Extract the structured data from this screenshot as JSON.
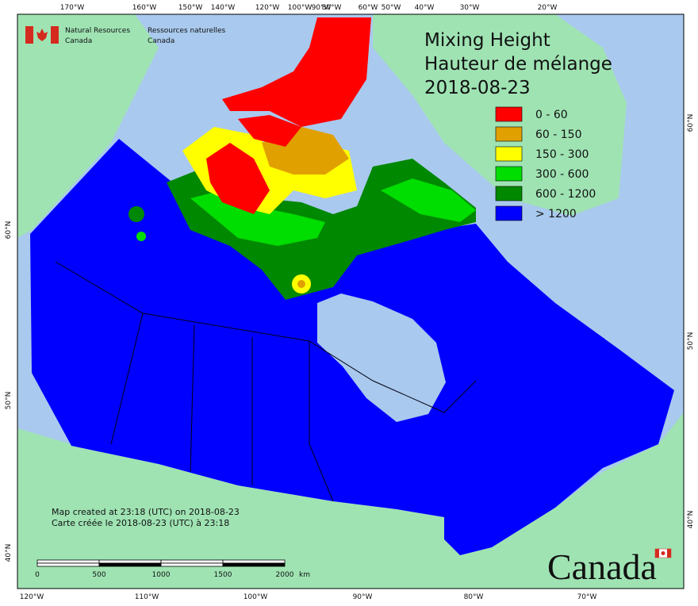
{
  "header": {
    "org_en": [
      "Natural Resources",
      "Canada"
    ],
    "org_fr": [
      "Ressources naturelles",
      "Canada"
    ]
  },
  "title": [
    "Mixing Height",
    "Hauteur de mélange",
    "2018-08-23"
  ],
  "legend": [
    {
      "label": "0 - 60",
      "color": "#ff0000"
    },
    {
      "label": "60 - 150",
      "color": "#e0a000"
    },
    {
      "label": "150 - 300",
      "color": "#ffff00"
    },
    {
      "label": "300 - 600",
      "color": "#00dd00"
    },
    {
      "label": "600 - 1200",
      "color": "#008800"
    },
    {
      "label": "> 1200",
      "color": "#0000ff"
    }
  ],
  "top_labels": [
    "170°W",
    "160°W",
    "150°W",
    "140°W",
    "120°W",
    "100°W",
    "90°W",
    "80°W",
    "60°W",
    "50°W",
    "40°W",
    "30°W",
    "20°W"
  ],
  "bottom_labels": [
    "120°W",
    "110°W",
    "100°W",
    "90°W",
    "80°W",
    "70°W"
  ],
  "left_labels": [
    "60°N",
    "50°N",
    "40°N"
  ],
  "right_labels": [
    "60°N",
    "50°N",
    "40°N"
  ],
  "credits": [
    "Map created at 23:18 (UTC) on 2018-08-23",
    "Carte créée le 2018-08-23 (UTC) à 23:18"
  ],
  "scale": {
    "ticks": [
      "0",
      "500",
      "1000",
      "1500",
      "2000"
    ],
    "unit": "km"
  },
  "wordmark": "Canada"
}
